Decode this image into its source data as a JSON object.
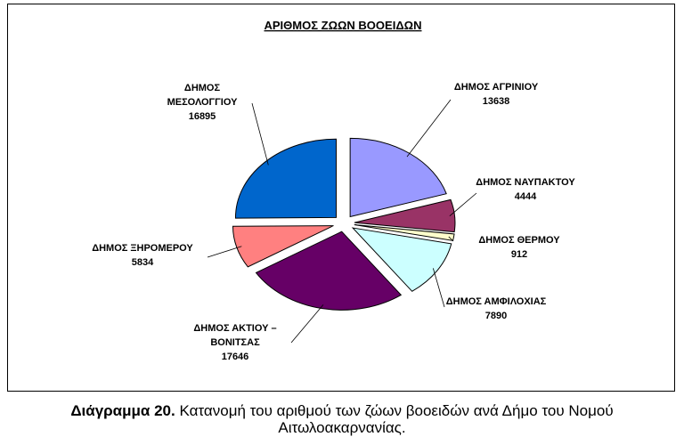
{
  "chart_data": {
    "type": "pie",
    "title": "ΑΡΙΘΜΟΣ ΖΩΩΝ ΒΟΟΕΙΔΩΝ",
    "exploded": true,
    "slices": [
      {
        "label_lines": [
          "ΔΗΜΟΣ ΑΓΡΙΝΙΟΥ"
        ],
        "value": 13638,
        "color": "#9999FF"
      },
      {
        "label_lines": [
          "ΔΗΜΟΣ ΝΑΥΠΑΚΤΟΥ"
        ],
        "value": 4444,
        "color": "#993366"
      },
      {
        "label_lines": [
          "ΔΗΜΟΣ ΘΕΡΜΟΥ"
        ],
        "value": 912,
        "color": "#FFFFCC"
      },
      {
        "label_lines": [
          "ΔΗΜΟΣ ΑΜΦΙΛΟΧΙΑΣ"
        ],
        "value": 7890,
        "color": "#CCFFFF"
      },
      {
        "label_lines": [
          "ΔΗΜΟΣ ΑΚΤΙΟΥ –",
          "ΒΟΝΙΤΣΑΣ"
        ],
        "value": 17646,
        "color": "#660066"
      },
      {
        "label_lines": [
          "ΔΗΜΟΣ ΞΗΡΟΜΕΡΟΥ"
        ],
        "value": 5834,
        "color": "#FF8080"
      },
      {
        "label_lines": [
          "ΔΗΜΟΣ",
          "ΜΕΣΟΛΟΓΓΙΟΥ"
        ],
        "value": 16895,
        "color": "#0066CC"
      }
    ]
  },
  "caption": {
    "label": "Διάγραμμα 20.",
    "line1": " Κατανομή του αριθμού των ζώων βοοειδών ανά Δήμο του Νομού",
    "line2": "Αιτωλοακαρνανίας."
  }
}
